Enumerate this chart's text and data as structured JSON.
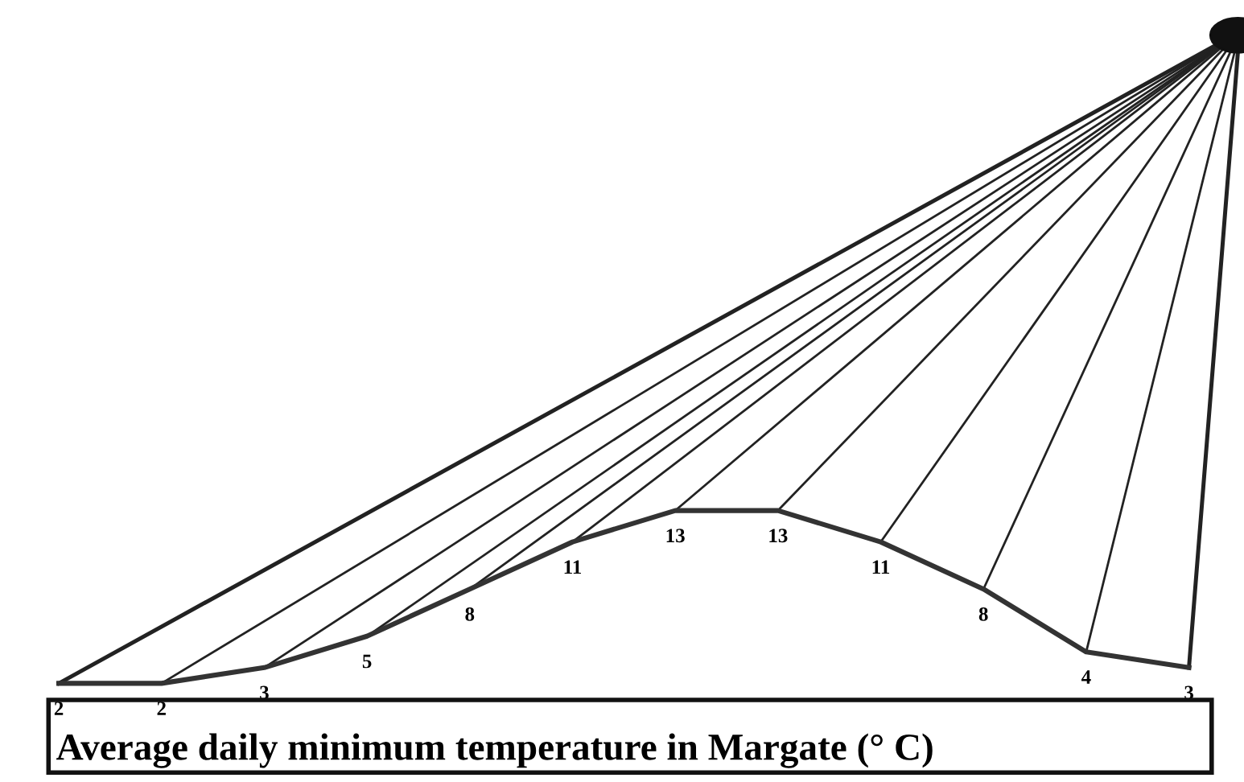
{
  "chart_data": {
    "type": "line",
    "title": "Average daily minimum temperature in Margate (° C)",
    "categories": [
      null,
      null,
      null,
      null,
      null,
      null,
      null,
      null,
      null,
      null,
      null,
      null
    ],
    "values": [
      2,
      2,
      3,
      5,
      8,
      11,
      13,
      13,
      11,
      8,
      4,
      3
    ],
    "color": "#333333",
    "data_labels": true,
    "marker": "none",
    "line_style": "solid"
  }
}
